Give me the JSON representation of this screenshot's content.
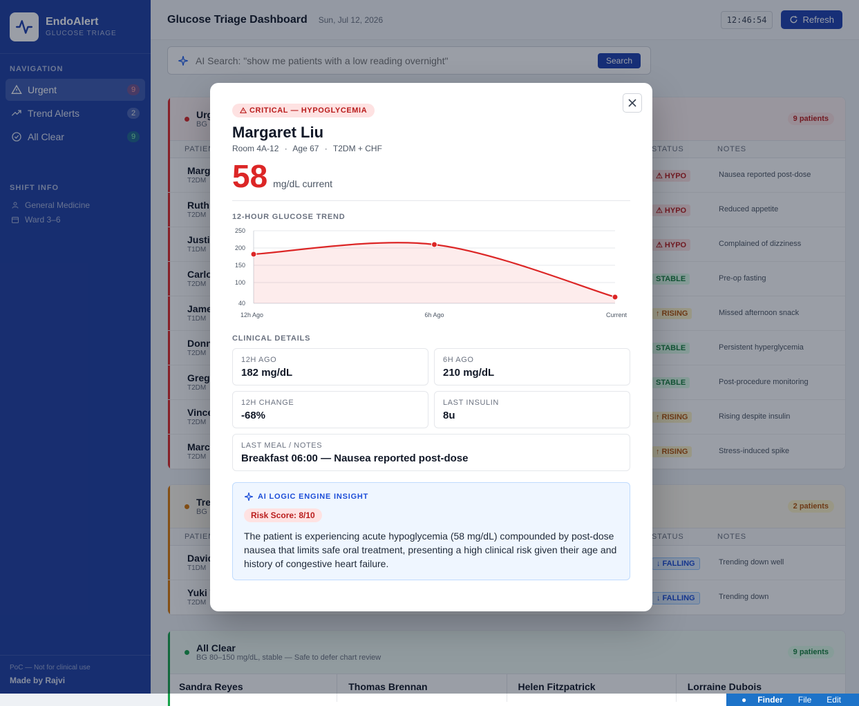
{
  "app": {
    "name": "EndoAlert",
    "subtitle": "GLUCOSE TRIAGE"
  },
  "nav": {
    "heading": "NAVIGATION",
    "items": [
      {
        "label": "Urgent",
        "count": "9"
      },
      {
        "label": "Trend Alerts",
        "count": "2"
      },
      {
        "label": "All Clear",
        "count": "9"
      }
    ]
  },
  "shift": {
    "heading": "SHIFT INFO",
    "department": "General Medicine",
    "ward": "Ward 3–6"
  },
  "footer": {
    "note": "PoC — Not for clinical use",
    "made_by": "Made by Rajvi"
  },
  "header": {
    "title": "Glucose Triage Dashboard",
    "date": "Sun, Jul 12, 2026",
    "clock": "12:46:54",
    "refresh_label": "Refresh"
  },
  "search": {
    "placeholder": "AI Search: \"show me patients with a low reading overnight\"",
    "button_label": "Search"
  },
  "urgent": {
    "title": "Urgent",
    "subtitle": "BG",
    "count_label": "9 patients",
    "columns": {
      "patient": "PATIENT",
      "status": "STATUS",
      "notes": "NOTES"
    },
    "rows": [
      {
        "name": "Margaret Liu",
        "sub": "T2DM",
        "status": "⚠ HYPO",
        "kind": "hypo",
        "note": "Nausea reported post-dose"
      },
      {
        "name": "Ruth S",
        "sub": "T2DM",
        "status": "⚠ HYPO",
        "kind": "hypo",
        "note": "Reduced appetite"
      },
      {
        "name": "Justin",
        "sub": "T1DM",
        "status": "⚠ HYPO",
        "kind": "hypo",
        "note": "Complained of dizziness"
      },
      {
        "name": "Carlo",
        "sub": "T2DM",
        "status": "STABLE",
        "kind": "stable",
        "note": "Pre-op fasting"
      },
      {
        "name": "James",
        "sub": "T1DM",
        "status": "↑ RISING",
        "kind": "rising",
        "note": "Missed afternoon snack"
      },
      {
        "name": "Donn",
        "sub": "T2DM",
        "status": "STABLE",
        "kind": "stable",
        "note": "Persistent hyperglycemia"
      },
      {
        "name": "Grego",
        "sub": "T2DM",
        "status": "STABLE",
        "kind": "stable",
        "note": "Post-procedure monitoring"
      },
      {
        "name": "Vince",
        "sub": "T2DM",
        "status": "↑ RISING",
        "kind": "rising",
        "note": "Rising despite insulin"
      },
      {
        "name": "Marcu",
        "sub": "T2DM",
        "status": "↑ RISING",
        "kind": "rising",
        "note": "Stress-induced spike"
      }
    ]
  },
  "trend": {
    "title": "Trend Alerts",
    "subtitle": "BG",
    "count_label": "2 patients",
    "columns": {
      "patient": "PATIENT",
      "status": "STATUS",
      "notes": "NOTES"
    },
    "rows": [
      {
        "name": "David",
        "sub": "T1DM",
        "status": "↓ FALLING",
        "kind": "falling",
        "note": "Trending down well"
      },
      {
        "name": "Yuki T",
        "sub": "T2DM",
        "status": "↓ FALLING",
        "kind": "falling",
        "note": "Trending down"
      }
    ]
  },
  "clear": {
    "title": "All Clear",
    "subtitle": "BG 80–150 mg/dL, stable — Safe to defer chart review",
    "count_label": "9 patients",
    "cards": [
      "Sandra Reyes",
      "Thomas Brennan",
      "Helen Fitzpatrick",
      "Lorraine Dubois"
    ]
  },
  "modal": {
    "badge": "CRITICAL — HYPOGLYCEMIA",
    "patient_name": "Margaret Liu",
    "room": "Room 4A-12",
    "age": "Age 67",
    "diagnosis": "T2DM + CHF",
    "current_bg": "58",
    "bg_unit": "mg/dL current",
    "trend_title": "12-HOUR GLUCOSE TREND",
    "details_title": "CLINICAL DETAILS",
    "details": [
      {
        "label": "12H AGO",
        "value": "182 mg/dL"
      },
      {
        "label": "6H AGO",
        "value": "210 mg/dL"
      },
      {
        "label": "12H CHANGE",
        "value": "-68%"
      },
      {
        "label": "LAST INSULIN",
        "value": "8u"
      },
      {
        "label": "LAST MEAL / NOTES",
        "value": "Breakfast 06:00 — Nausea reported post-dose"
      }
    ],
    "ai": {
      "title": "AI LOGIC ENGINE INSIGHT",
      "risk": "Risk Score: 8/10",
      "text": "The patient is experiencing acute hypoglycemia (58 mg/dL) compounded by post-dose nausea that limits safe oral treatment, presenting a high clinical risk given their age and history of congestive heart failure."
    }
  },
  "chart_data": {
    "type": "line",
    "x": [
      "12h Ago",
      "6h Ago",
      "Current"
    ],
    "series": [
      {
        "values": [
          182,
          210,
          58
        ]
      }
    ],
    "yticks": [
      250,
      200,
      150,
      100,
      40
    ],
    "ylim": [
      40,
      250
    ],
    "grid": true,
    "color": "#dc2626"
  },
  "mac_menu": [
    "Finder",
    "File",
    "Edit"
  ]
}
